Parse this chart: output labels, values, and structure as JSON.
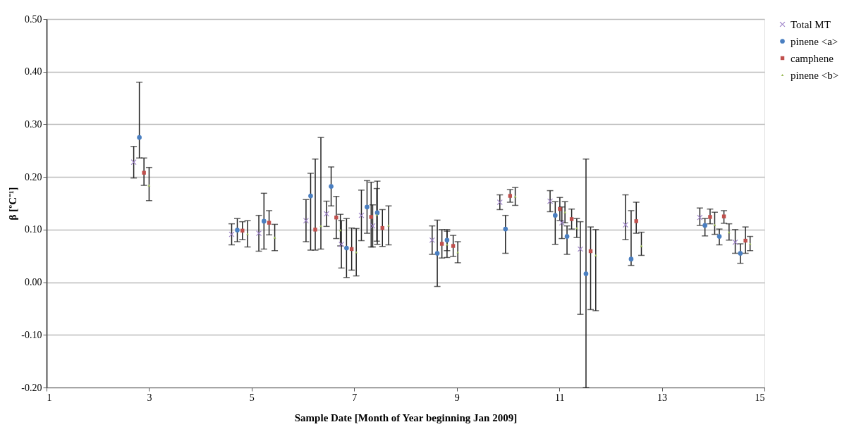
{
  "chart_data": {
    "type": "scatter",
    "xlabel": "Sample Date [Month of Year beginning Jan 2009]",
    "ylabel": "β [ºC⁻¹]",
    "xlim": [
      1,
      15
    ],
    "xticks": [
      1,
      3,
      5,
      7,
      9,
      11,
      13,
      15
    ],
    "ylim": [
      -0.2,
      0.5
    ],
    "yticks": [
      {
        "value": -0.2,
        "label": "-0.20"
      },
      {
        "value": -0.1,
        "label": "-0.10"
      },
      {
        "value": 0,
        "label": "0.00"
      },
      {
        "value": 0.1,
        "label": "0.10"
      },
      {
        "value": 0.2,
        "label": "0.20"
      },
      {
        "value": 0.3,
        "label": "0.30"
      },
      {
        "value": 0.4,
        "label": "0.40"
      },
      {
        "value": 0.5,
        "label": "0.50"
      }
    ],
    "grid": "y",
    "legend": "right",
    "series": [
      {
        "name": "Total MT",
        "color": "#9b7fc7",
        "marker": "cross",
        "x": [
          2.7,
          4.61,
          5.14,
          6.06,
          6.46,
          6.75,
          7.14,
          7.36,
          8.52,
          9.84,
          10.82,
          11.05,
          11.41,
          12.29,
          13.74,
          14.43
        ],
        "values": [
          0.228,
          0.091,
          0.093,
          0.117,
          0.13,
          0.072,
          0.127,
          0.107,
          0.08,
          0.152,
          0.154,
          0.113,
          0.063,
          0.109,
          0.123,
          0.076
        ],
        "errors": [
          0.03,
          0.02,
          0.034,
          0.04,
          0.024,
          0.045,
          0.048,
          0.04,
          0.027,
          0.014,
          0.02,
          0.03,
          [
            -0.061,
            0.115
          ],
          [
            0.081,
            0.166
          ],
          [
            0.108,
            0.141
          ],
          [
            0.055,
            0.1
          ]
        ]
      },
      {
        "name": "pinene <a>",
        "color": "#4a7fc1",
        "marker": "circle",
        "x": [
          2.81,
          4.72,
          5.24,
          6.15,
          6.55,
          6.85,
          7.25,
          7.45,
          8.62,
          8.81,
          9.95,
          10.92,
          11.15,
          11.52,
          12.4,
          13.84,
          14.12,
          14.53
        ],
        "values": [
          0.275,
          0.099,
          0.116,
          0.164,
          0.182,
          0.065,
          0.143,
          0.132,
          0.055,
          0.08,
          0.101,
          0.127,
          0.087,
          0.016,
          0.044,
          0.108,
          0.087,
          0.055
        ],
        "errors": [
          [
            0.236,
            0.38
          ],
          0.022,
          0.053,
          [
            0.061,
            0.207
          ],
          0.037,
          0.056,
          0.05,
          0.06,
          0.063,
          0.02,
          [
            0.055,
            0.127
          ],
          [
            0.072,
            0.153
          ],
          [
            0.053,
            0.107
          ],
          [
            -0.2,
            0.234
          ],
          [
            0.032,
            0.136
          ],
          [
            0.088,
            0.121
          ],
          [
            0.071,
            0.101
          ],
          [
            0.036,
            0.073
          ]
        ]
      },
      {
        "name": "camphene",
        "color": "#c0504d",
        "marker": "square",
        "x": [
          2.9,
          4.82,
          5.34,
          6.24,
          6.65,
          6.95,
          7.33,
          7.55,
          8.71,
          8.93,
          10.04,
          11.01,
          11.24,
          11.61,
          12.5,
          13.94,
          14.21,
          14.63
        ],
        "values": [
          0.208,
          0.098,
          0.113,
          0.1,
          0.123,
          0.063,
          0.124,
          0.103,
          0.073,
          0.069,
          0.164,
          0.139,
          0.12,
          0.059,
          0.116,
          0.124,
          0.125,
          0.079
        ],
        "errors": [
          [
            0.184,
            0.236
          ],
          0.017,
          0.023,
          [
            0.061,
            0.234
          ],
          0.04,
          0.04,
          [
            0.067,
            0.19
          ],
          0.035,
          0.027,
          0.02,
          0.012,
          0.022,
          0.019,
          [
            -0.052,
            0.105
          ],
          [
            0.093,
            0.152
          ],
          [
            0.111,
            0.139
          ],
          [
            0.112,
            0.136
          ],
          [
            0.055,
            0.105
          ]
        ]
      },
      {
        "name": "pinene <b>",
        "color": "#9bbb59",
        "marker": "triangle",
        "x": [
          3.0,
          4.92,
          5.45,
          6.35,
          6.73,
          7.04,
          7.44,
          7.67,
          8.81,
          9.02,
          10.14,
          11.11,
          11.34,
          11.71,
          12.6,
          14.03,
          14.31,
          14.72
        ],
        "values": [
          0.184,
          0.092,
          0.085,
          0.107,
          0.099,
          0.057,
          0.128,
          0.108,
          0.072,
          0.057,
          0.163,
          0.133,
          0.103,
          0.051,
          0.069,
          0.109,
          0.095,
          0.073
        ],
        "errors": [
          [
            0.155,
            0.218
          ],
          0.025,
          0.025,
          [
            0.063,
            0.275
          ],
          0.03,
          0.045,
          0.05,
          0.037,
          0.025,
          0.02,
          0.017,
          0.02,
          0.018,
          [
            -0.054,
            0.1
          ],
          [
            0.051,
            0.095
          ],
          [
            0.091,
            0.133
          ],
          [
            0.08,
            0.111
          ],
          [
            0.06,
            0.087
          ]
        ]
      }
    ]
  }
}
